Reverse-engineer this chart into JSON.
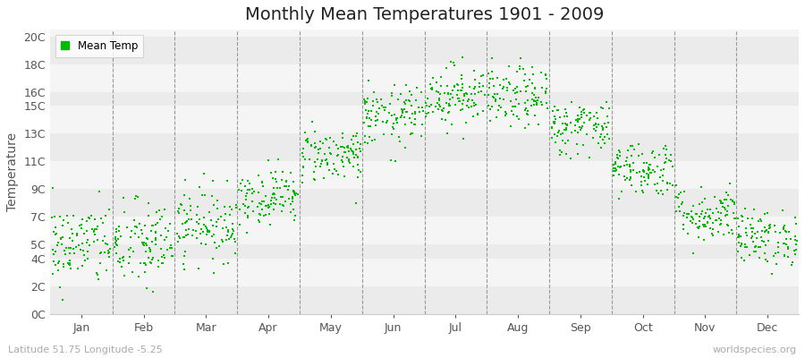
{
  "title": "Monthly Mean Temperatures 1901 - 2009",
  "ylabel": "Temperature",
  "bottom_left": "Latitude 51.75 Longitude -5.25",
  "bottom_right": "worldspecies.org",
  "ytick_labels": [
    "0C",
    "2C",
    "4C",
    "5C",
    "7C",
    "9C",
    "11C",
    "13C",
    "15C",
    "16C",
    "18C",
    "20C"
  ],
  "ytick_values": [
    0,
    2,
    4,
    5,
    7,
    9,
    11,
    13,
    15,
    16,
    18,
    20
  ],
  "months": [
    "Jan",
    "Feb",
    "Mar",
    "Apr",
    "May",
    "Jun",
    "Jul",
    "Aug",
    "Sep",
    "Oct",
    "Nov",
    "Dec"
  ],
  "month_positions": [
    1,
    2,
    3,
    4,
    5,
    6,
    7,
    8,
    9,
    10,
    11,
    12
  ],
  "dot_color": "#00BB00",
  "dot_size": 3,
  "legend_label": "Mean Temp",
  "title_fontsize": 14,
  "label_fontsize": 10,
  "tick_fontsize": 9,
  "mean_temps": [
    5.0,
    5.0,
    6.5,
    8.5,
    11.5,
    14.2,
    15.8,
    15.6,
    13.5,
    10.5,
    7.2,
    5.5
  ],
  "std_temps": [
    1.5,
    1.6,
    1.3,
    1.0,
    1.0,
    1.1,
    1.1,
    1.1,
    1.0,
    1.0,
    1.0,
    1.0
  ],
  "n_years": 109,
  "seed": 42,
  "band_colors": [
    "#ebebeb",
    "#f5f5f5"
  ],
  "fig_bg": "#ffffff",
  "spine_color": "#cccccc",
  "text_color": "#555555",
  "dash_color": "#999999"
}
